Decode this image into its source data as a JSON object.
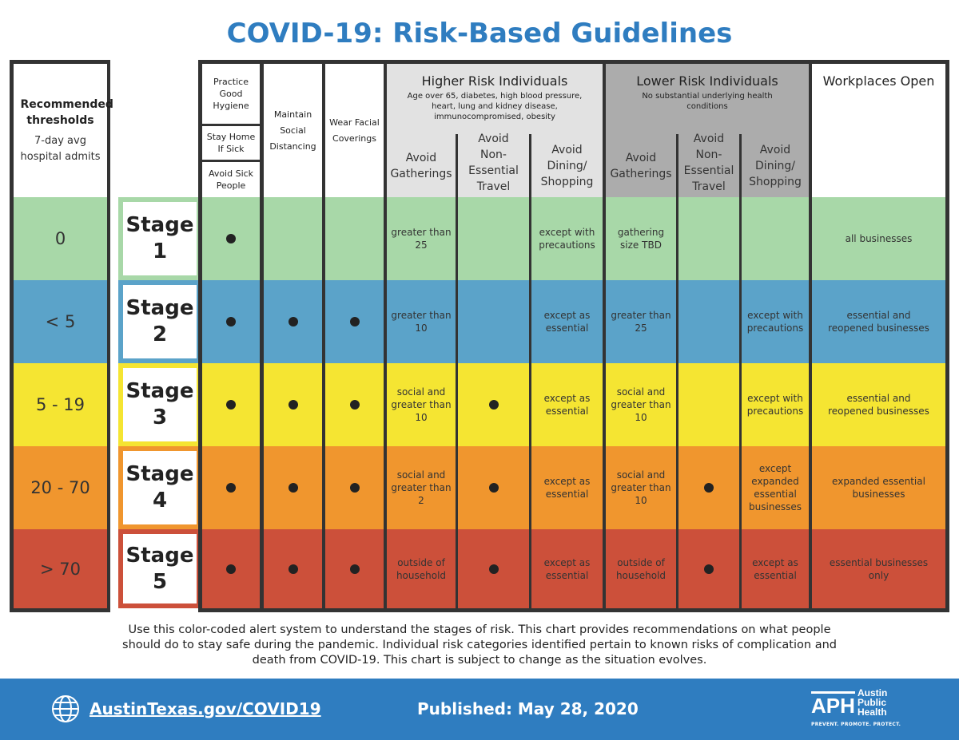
{
  "title": "COVID-19: Risk-Based Guidelines",
  "threshold_header": {
    "title": "Recommended thresholds",
    "subtitle": "7-day avg hospital admits"
  },
  "columns": {
    "hygiene": [
      "Practice Good Hygiene",
      "Stay Home If Sick",
      "Avoid Sick People"
    ],
    "distancing": "Maintain Social Distancing",
    "coverings": "Wear Facial Coverings",
    "higher_risk": {
      "title": "Higher Risk Individuals",
      "subtitle": "Age over 65, diabetes, high blood pressure, heart, lung and kidney disease, immunocompromised, obesity",
      "subs": [
        "Avoid Gatherings",
        "Avoid Non-Essential Travel",
        "Avoid Dining/ Shopping"
      ]
    },
    "lower_risk": {
      "title": "Lower Risk Individuals",
      "subtitle": "No substantial underlying health conditions",
      "subs": [
        "Avoid Gatherings",
        "Avoid Non-Essential Travel",
        "Avoid Dining/ Shopping"
      ]
    },
    "workplaces": "Workplaces Open"
  },
  "stages": [
    {
      "threshold": "0",
      "label": "Stage",
      "number": "1",
      "color": "#a8d8a8",
      "hygiene": true,
      "distancing": false,
      "coverings": false,
      "hr_gatherings": "greater than 25",
      "hr_travel": "",
      "hr_dining": "except with precautions",
      "lr_gatherings": "gathering size TBD",
      "lr_travel": "",
      "lr_dining": "",
      "workplaces": "all businesses"
    },
    {
      "threshold": "< 5",
      "label": "Stage",
      "number": "2",
      "color": "#5ba3c9",
      "hygiene": true,
      "distancing": true,
      "coverings": true,
      "hr_gatherings": "greater than 10",
      "hr_travel": "",
      "hr_dining": "except as essential",
      "lr_gatherings": "greater than 25",
      "lr_travel": "",
      "lr_dining": "except with precautions",
      "workplaces": "essential and reopened businesses"
    },
    {
      "threshold": "5 - 19",
      "label": "Stage",
      "number": "3",
      "color": "#f5e532",
      "hygiene": true,
      "distancing": true,
      "coverings": true,
      "hr_gatherings": "social and greater than 10",
      "hr_travel": "dot",
      "hr_dining": "except as essential",
      "lr_gatherings": "social and greater than 10",
      "lr_travel": "",
      "lr_dining": "except with precautions",
      "workplaces": "essential and reopened businesses"
    },
    {
      "threshold": "20 - 70",
      "label": "Stage",
      "number": "4",
      "color": "#f0962e",
      "hygiene": true,
      "distancing": true,
      "coverings": true,
      "hr_gatherings": "social and greater than 2",
      "hr_travel": "dot",
      "hr_dining": "except as essential",
      "lr_gatherings": "social and greater than 10",
      "lr_travel": "dot",
      "lr_dining": "except expanded essential businesses",
      "workplaces": "expanded essential businesses"
    },
    {
      "threshold": "> 70",
      "label": "Stage",
      "number": "5",
      "color": "#cc503a",
      "hygiene": true,
      "distancing": true,
      "coverings": true,
      "hr_gatherings": "outside of household",
      "hr_travel": "dot",
      "hr_dining": "except as essential",
      "lr_gatherings": "outside of household",
      "lr_travel": "dot",
      "lr_dining": "except as essential",
      "workplaces": "essential businesses only"
    }
  ],
  "caption": "Use this color-coded alert system to understand the stages of risk. This chart provides recommendations on what people should do to stay safe during the pandemic. Individual risk categories identified pertain to known risks of complication and death from COVID-19. This chart is subject to change as the situation evolves.",
  "footer": {
    "link": "AustinTexas.gov/COVID19",
    "published": "Published: May 28, 2020",
    "logo_mark": "APH",
    "logo_name": [
      "Austin",
      "Public",
      "Health"
    ],
    "logo_tagline": "PREVENT. PROMOTE. PROTECT.",
    "globe_icon": "globe-icon"
  }
}
